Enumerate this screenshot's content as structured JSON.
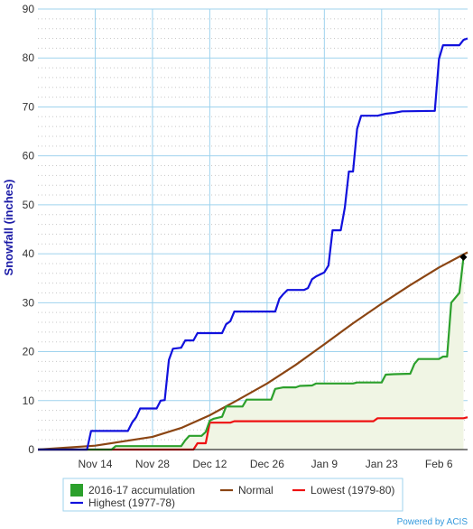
{
  "chart_data": {
    "type": "line",
    "ylabel": "Snowfall (inches)",
    "ylim": [
      0,
      90
    ],
    "yticks": [
      0,
      10,
      20,
      30,
      40,
      50,
      60,
      70,
      80,
      90
    ],
    "x_range": [
      "Oct 31",
      "Feb 13"
    ],
    "xticks": [
      {
        "date": "Nov 14",
        "label": "Nov 14"
      },
      {
        "date": "Nov 28",
        "label": "Nov 28"
      },
      {
        "date": "Dec 12",
        "label": "Dec 12"
      },
      {
        "date": "Dec 26",
        "label": "Dec 26"
      },
      {
        "date": "Jan 9",
        "label": "Jan 9"
      },
      {
        "date": "Jan 23",
        "label": "Jan 23"
      },
      {
        "date": "Feb 6",
        "label": "Feb 6"
      }
    ],
    "grid": true,
    "legend_position": "bottom",
    "credit": "Powered by ACIS",
    "series": [
      {
        "name": "2016-17 accumulation",
        "color": "#2ca02c",
        "fill": "#f0f5e4",
        "points": [
          [
            "Oct 31",
            0
          ],
          [
            "Nov 18",
            0
          ],
          [
            "Nov 19",
            0.7
          ],
          [
            "Dec 5",
            0.7
          ],
          [
            "Dec 6",
            1.9
          ],
          [
            "Dec 7",
            2.8
          ],
          [
            "Dec 10",
            2.8
          ],
          [
            "Dec 11",
            3.6
          ],
          [
            "Dec 12",
            5.9
          ],
          [
            "Dec 13",
            6.3
          ],
          [
            "Dec 15",
            6.7
          ],
          [
            "Dec 16",
            8.8
          ],
          [
            "Dec 20",
            8.8
          ],
          [
            "Dec 21",
            10.2
          ],
          [
            "Dec 27",
            10.2
          ],
          [
            "Dec 28",
            12.4
          ],
          [
            "Dec 30",
            12.7
          ],
          [
            "Jan 2",
            12.7
          ],
          [
            "Jan 3",
            13.0
          ],
          [
            "Jan 6",
            13.1
          ],
          [
            "Jan 7",
            13.5
          ],
          [
            "Jan 16",
            13.5
          ],
          [
            "Jan 17",
            13.7
          ],
          [
            "Jan 23",
            13.7
          ],
          [
            "Jan 24",
            15.3
          ],
          [
            "Jan 26",
            15.4
          ],
          [
            "Jan 30",
            15.5
          ],
          [
            "Jan 31",
            17.5
          ],
          [
            "Feb 1",
            18.5
          ],
          [
            "Feb 6",
            18.5
          ],
          [
            "Feb 7",
            19.0
          ],
          [
            "Feb 8",
            19.0
          ],
          [
            "Feb 9",
            30.0
          ],
          [
            "Feb 11",
            32.0
          ],
          [
            "Feb 12",
            39.3
          ]
        ]
      },
      {
        "name": "Highest (1977-78)",
        "color": "#1111dd",
        "points": [
          [
            "Oct 31",
            0
          ],
          [
            "Nov 12",
            0
          ],
          [
            "Nov 13",
            3.8
          ],
          [
            "Nov 22",
            3.8
          ],
          [
            "Nov 23",
            5.5
          ],
          [
            "Nov 24",
            6.6
          ],
          [
            "Nov 25",
            8.4
          ],
          [
            "Nov 29",
            8.4
          ],
          [
            "Nov 30",
            10.0
          ],
          [
            "Dec 1",
            10.1
          ],
          [
            "Dec 2",
            18.3
          ],
          [
            "Dec 3",
            20.6
          ],
          [
            "Dec 5",
            20.8
          ],
          [
            "Dec 6",
            22.3
          ],
          [
            "Dec 8",
            22.3
          ],
          [
            "Dec 9",
            23.8
          ],
          [
            "Dec 15",
            23.8
          ],
          [
            "Dec 16",
            25.6
          ],
          [
            "Dec 17",
            26.2
          ],
          [
            "Dec 18",
            28.2
          ],
          [
            "Dec 28",
            28.2
          ],
          [
            "Dec 29",
            30.8
          ],
          [
            "Dec 30",
            31.8
          ],
          [
            "Dec 31",
            32.6
          ],
          [
            "Jan 4",
            32.6
          ],
          [
            "Jan 5",
            33.0
          ],
          [
            "Jan 6",
            34.8
          ],
          [
            "Jan 7",
            35.4
          ],
          [
            "Jan 9",
            36.2
          ],
          [
            "Jan 10",
            37.6
          ],
          [
            "Jan 11",
            44.8
          ],
          [
            "Jan 13",
            44.8
          ],
          [
            "Jan 14",
            49.4
          ],
          [
            "Jan 15",
            56.8
          ],
          [
            "Jan 16",
            56.8
          ],
          [
            "Jan 17",
            65.5
          ],
          [
            "Jan 18",
            68.2
          ],
          [
            "Jan 22",
            68.2
          ],
          [
            "Jan 24",
            68.6
          ],
          [
            "Jan 26",
            68.8
          ],
          [
            "Jan 28",
            69.1
          ],
          [
            "Feb 5",
            69.2
          ],
          [
            "Feb 6",
            79.8
          ],
          [
            "Feb 7",
            82.6
          ],
          [
            "Feb 11",
            82.6
          ],
          [
            "Feb 12",
            83.7
          ],
          [
            "Feb 13",
            84.0
          ]
        ]
      },
      {
        "name": "Normal",
        "color": "#8b4513",
        "points": [
          [
            "Oct 31",
            0
          ],
          [
            "Nov 14",
            0.8
          ],
          [
            "Nov 28",
            2.6
          ],
          [
            "Dec 5",
            4.4
          ],
          [
            "Dec 12",
            7.0
          ],
          [
            "Dec 19",
            10.2
          ],
          [
            "Dec 26",
            13.5
          ],
          [
            "Jan 2",
            17.3
          ],
          [
            "Jan 9",
            21.5
          ],
          [
            "Jan 16",
            25.8
          ],
          [
            "Jan 23",
            29.8
          ],
          [
            "Jan 30",
            33.6
          ],
          [
            "Feb 6",
            37.2
          ],
          [
            "Feb 13",
            40.3
          ]
        ]
      },
      {
        "name": "Lowest (1979-80)",
        "color": "#ee1111",
        "points": [
          [
            "Oct 31",
            0
          ],
          [
            "Dec 8",
            0
          ],
          [
            "Dec 9",
            1.3
          ],
          [
            "Dec 11",
            1.3
          ],
          [
            "Dec 12",
            5.5
          ],
          [
            "Dec 17",
            5.5
          ],
          [
            "Dec 18",
            5.8
          ],
          [
            "Jan 21",
            5.8
          ],
          [
            "Jan 22",
            6.4
          ],
          [
            "Feb 12",
            6.4
          ],
          [
            "Feb 13",
            6.6
          ]
        ]
      }
    ],
    "marker": {
      "date": "Feb 12",
      "value": 39.3,
      "color": "#000000"
    }
  }
}
